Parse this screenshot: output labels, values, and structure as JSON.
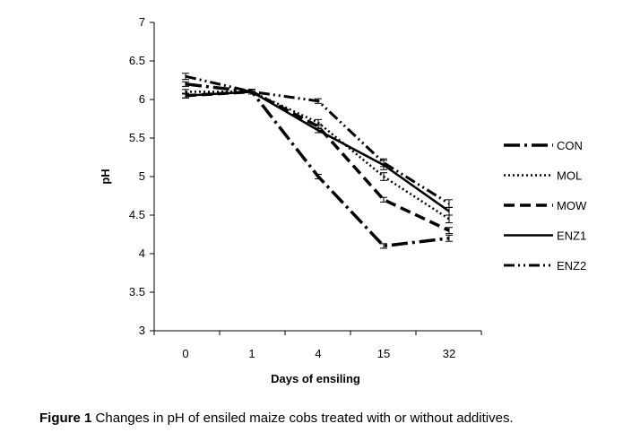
{
  "chart_data": {
    "type": "line",
    "xlabel": "Days of ensiling",
    "ylabel": "pH",
    "categories": [
      "0",
      "1",
      "4",
      "15",
      "32"
    ],
    "ylim": [
      3,
      7
    ],
    "yticks": [
      "3",
      "3.5",
      "4",
      "4.5",
      "5",
      "5.5",
      "6",
      "6.5",
      "7"
    ],
    "grid": false,
    "legend_position": "right",
    "error_bars": true,
    "series": [
      {
        "name": "CON",
        "style": "long-dash-dot",
        "values": [
          6.2,
          6.1,
          5.0,
          4.1,
          4.2
        ],
        "errors": [
          0.03,
          0.03,
          0.03,
          0.03,
          0.04
        ]
      },
      {
        "name": "MOL",
        "style": "dotted",
        "values": [
          6.1,
          6.1,
          5.7,
          5.0,
          4.45
        ],
        "errors": [
          0.03,
          0.03,
          0.04,
          0.05,
          0.05
        ]
      },
      {
        "name": "MOW",
        "style": "dashed",
        "values": [
          6.05,
          6.1,
          5.65,
          4.7,
          4.3
        ],
        "errors": [
          0.03,
          0.03,
          0.03,
          0.03,
          0.04
        ]
      },
      {
        "name": "ENZ1",
        "style": "solid",
        "values": [
          6.05,
          6.1,
          5.6,
          5.15,
          4.55
        ],
        "errors": [
          0.03,
          0.03,
          0.03,
          0.06,
          0.05
        ]
      },
      {
        "name": "ENZ2",
        "style": "dash-dot-dot",
        "values": [
          6.3,
          6.1,
          5.98,
          5.18,
          4.65
        ],
        "errors": [
          0.04,
          0.03,
          0.03,
          0.05,
          0.05
        ]
      }
    ]
  },
  "caption": {
    "label": "Figure 1",
    "text": " Changes in pH of ensiled maize cobs treated with or without additives."
  }
}
